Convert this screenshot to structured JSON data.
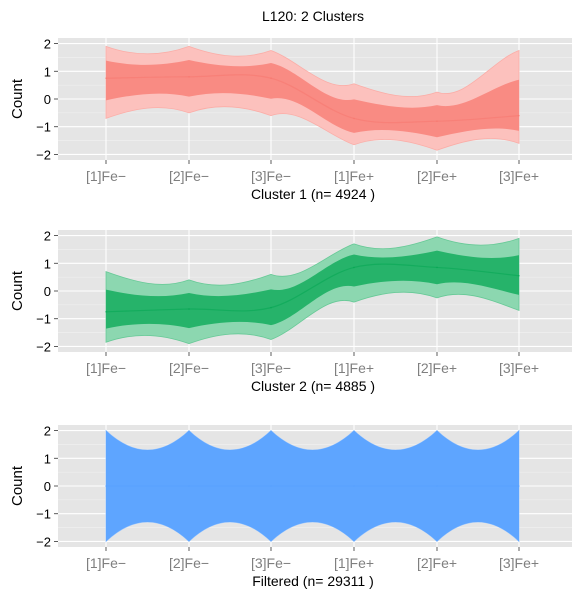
{
  "title": "L120: 2 Clusters",
  "chart_data": [
    {
      "type": "line",
      "title": "Cluster 1 (n= 4924 )",
      "ylabel": "Count",
      "color": "#F8766D",
      "n": 4924,
      "categories": [
        "[1]Fe−",
        "[2]Fe−",
        "[3]Fe−",
        "[1]Fe+",
        "[2]Fe+",
        "[3]Fe+"
      ],
      "yticks": [
        "2",
        "1",
        "0",
        "−1",
        "−2"
      ],
      "ylim": [
        -2.2,
        2.2
      ],
      "grid": true,
      "series": [
        {
          "values": [
            0.75,
            0.8,
            0.75,
            -0.7,
            -0.8,
            -0.6
          ]
        }
      ],
      "band_upper": [
        1.9,
        1.9,
        1.75,
        0.55,
        0.25,
        1.75
      ],
      "band_lower": [
        -0.7,
        -0.5,
        -0.6,
        -1.65,
        -1.85,
        -1.6
      ]
    },
    {
      "type": "line",
      "title": "Cluster 2 (n= 4885 )",
      "ylabel": "Count",
      "color": "#00A550",
      "n": 4885,
      "categories": [
        "[1]Fe−",
        "[2]Fe−",
        "[3]Fe−",
        "[1]Fe+",
        "[2]Fe+",
        "[3]Fe+"
      ],
      "yticks": [
        "2",
        "1",
        "0",
        "−1",
        "−2"
      ],
      "ylim": [
        -2.2,
        2.2
      ],
      "grid": true,
      "series": [
        {
          "values": [
            -0.75,
            -0.65,
            -0.6,
            0.85,
            0.85,
            0.55
          ]
        }
      ],
      "band_upper": [
        0.7,
        0.4,
        0.6,
        1.7,
        1.95,
        1.9
      ],
      "band_lower": [
        -1.85,
        -1.9,
        -1.75,
        -0.4,
        -0.25,
        -0.7
      ]
    },
    {
      "type": "line",
      "title": "Filtered (n= 29311 )",
      "ylabel": "Count",
      "color": "#56A0FF",
      "n": 29311,
      "categories": [
        "[1]Fe−",
        "[2]Fe−",
        "[3]Fe−",
        "[1]Fe+",
        "[2]Fe+",
        "[3]Fe+"
      ],
      "yticks": [
        "2",
        "1",
        "0",
        "−1",
        "−2"
      ],
      "ylim": [
        -2.2,
        2.2
      ],
      "grid": true,
      "series": [
        {
          "values": [
            0.0,
            0.0,
            0.0,
            0.0,
            0.0,
            0.0
          ]
        }
      ],
      "band_upper": [
        2.0,
        2.0,
        2.0,
        2.0,
        2.0,
        2.0
      ],
      "band_lower": [
        -2.0,
        -2.0,
        -2.0,
        -2.0,
        -2.0,
        -2.0
      ]
    }
  ]
}
